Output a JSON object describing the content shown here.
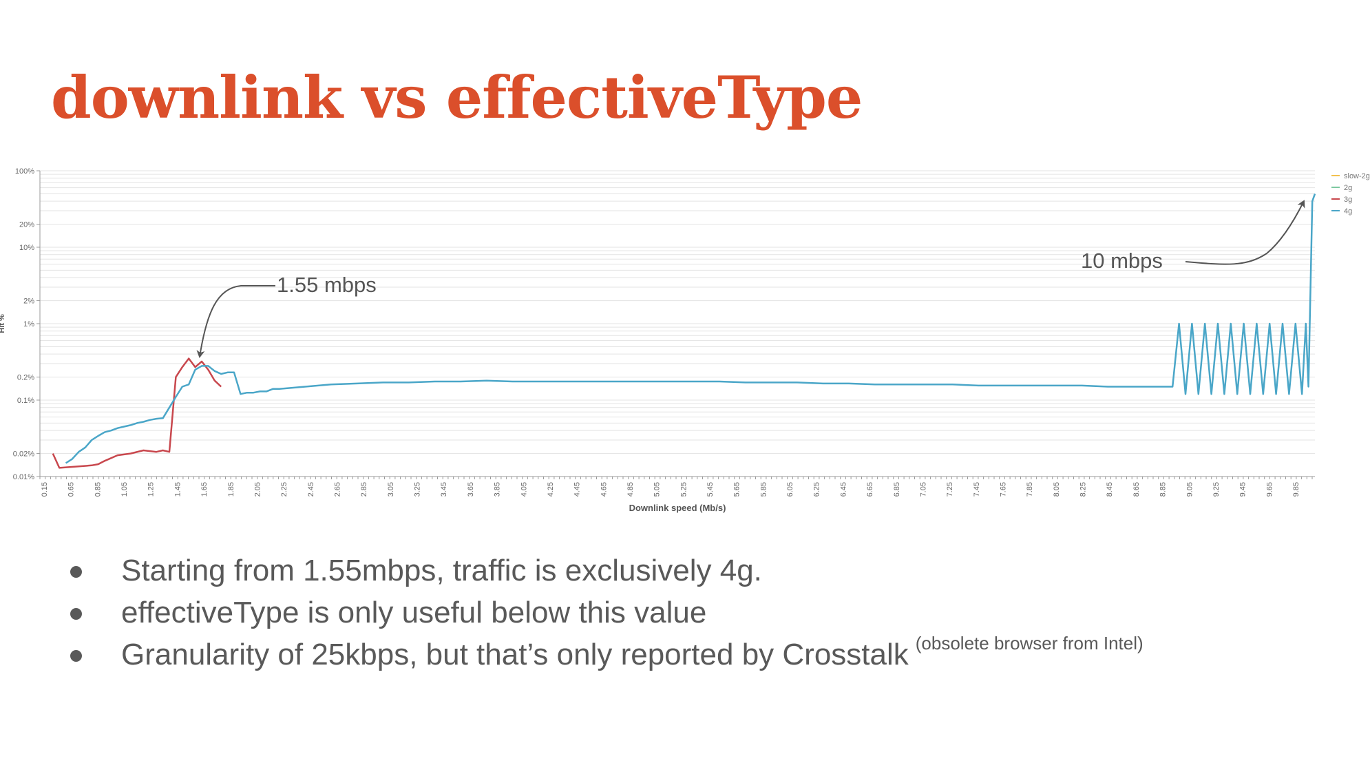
{
  "slide": {
    "title": "downlink vs effectiveType",
    "bullets": [
      {
        "text": "Starting from 1.55mbps, traffic is exclusively 4g.",
        "note": ""
      },
      {
        "text": "effectiveType is only useful below this value",
        "note": ""
      },
      {
        "text": "Granularity of 25kbps, but that’s only reported by Crosstalk",
        "note": "(obsolete browser from Intel)"
      }
    ]
  },
  "colors": {
    "title": "#db4f2b",
    "body_text": "#595959",
    "slow-2g": "#f2c14e",
    "2g": "#7dc9a0",
    "3g": "#c8474d",
    "4g": "#4aa6c8",
    "annotation": "#555555"
  },
  "chart_data": {
    "type": "line",
    "title": "",
    "xlabel": "Downlink speed (Mb/s)",
    "ylabel": "Hit %",
    "y_scale": "log",
    "ylim": [
      0.01,
      100
    ],
    "xlim": [
      0.15,
      10.0
    ],
    "ytick_labels": [
      {
        "value": 100,
        "label": "100%"
      },
      {
        "value": 20,
        "label": "20%"
      },
      {
        "value": 10,
        "label": "10%"
      },
      {
        "value": 2,
        "label": "2%"
      },
      {
        "value": 1,
        "label": "1%"
      },
      {
        "value": 0.2,
        "label": "0.2%"
      },
      {
        "value": 0.1,
        "label": "0.1%"
      },
      {
        "value": 0.02,
        "label": "0.02%"
      },
      {
        "value": 0.01,
        "label": "0.01%"
      }
    ],
    "xtick_labels": [
      "0.15",
      "0.65",
      "0.85",
      "1.05",
      "1.25",
      "1.45",
      "1.65",
      "1.85",
      "2.05",
      "2.25",
      "2.45",
      "2.65",
      "2.85",
      "3.05",
      "3.25",
      "3.45",
      "3.65",
      "3.85",
      "4.05",
      "4.25",
      "4.45",
      "4.65",
      "4.85",
      "5.05",
      "5.25",
      "5.45",
      "5.65",
      "5.85",
      "6.05",
      "6.25",
      "6.45",
      "6.65",
      "6.85",
      "7.05",
      "7.25",
      "7.45",
      "7.65",
      "7.85",
      "8.05",
      "8.25",
      "8.45",
      "8.65",
      "8.85",
      "9.05",
      "9.25",
      "9.45",
      "9.65",
      "9.85"
    ],
    "grid": true,
    "legend_position": "top-right",
    "series": [
      {
        "name": "slow-2g",
        "x": [],
        "y": []
      },
      {
        "name": "2g",
        "x": [],
        "y": []
      },
      {
        "name": "3g",
        "x": [
          0.25,
          0.3,
          0.55,
          0.6,
          0.65,
          0.75,
          0.85,
          0.95,
          1.05,
          1.1,
          1.15,
          1.2,
          1.25,
          1.3,
          1.35,
          1.4,
          1.45,
          1.5,
          1.55
        ],
        "y": [
          0.02,
          0.013,
          0.014,
          0.0145,
          0.016,
          0.019,
          0.02,
          0.022,
          0.021,
          0.022,
          0.021,
          0.2,
          0.27,
          0.35,
          0.27,
          0.32,
          0.25,
          0.18,
          0.15
        ]
      },
      {
        "name": "4g",
        "x": [
          0.35,
          0.4,
          0.45,
          0.5,
          0.55,
          0.6,
          0.65,
          0.7,
          0.75,
          0.8,
          0.85,
          0.9,
          0.95,
          1.0,
          1.05,
          1.1,
          1.15,
          1.2,
          1.25,
          1.3,
          1.35,
          1.4,
          1.45,
          1.5,
          1.55,
          1.6,
          1.65,
          1.7,
          1.75,
          1.8,
          1.85,
          1.9,
          1.95,
          2.0,
          2.2,
          2.4,
          2.6,
          2.8,
          3.0,
          3.2,
          3.4,
          3.6,
          3.8,
          4.0,
          4.2,
          4.4,
          4.6,
          4.8,
          5.0,
          5.2,
          5.4,
          5.6,
          5.8,
          6.0,
          6.2,
          6.4,
          6.6,
          6.8,
          7.0,
          7.2,
          7.4,
          7.6,
          7.8,
          8.0,
          8.2,
          8.4,
          8.6,
          8.8,
          8.9,
          8.95,
          9.0,
          9.05,
          9.1,
          9.15,
          9.2,
          9.25,
          9.3,
          9.35,
          9.4,
          9.45,
          9.5,
          9.55,
          9.6,
          9.65,
          9.7,
          9.75,
          9.8,
          9.85,
          9.9,
          9.93,
          9.95,
          9.98,
          10.0
        ],
        "y": [
          0.015,
          0.017,
          0.021,
          0.024,
          0.03,
          0.034,
          0.038,
          0.04,
          0.043,
          0.045,
          0.047,
          0.05,
          0.052,
          0.055,
          0.057,
          0.058,
          0.08,
          0.11,
          0.15,
          0.16,
          0.25,
          0.28,
          0.28,
          0.24,
          0.22,
          0.23,
          0.23,
          0.12,
          0.125,
          0.125,
          0.13,
          0.13,
          0.14,
          0.14,
          0.15,
          0.16,
          0.165,
          0.17,
          0.17,
          0.175,
          0.175,
          0.18,
          0.175,
          0.175,
          0.175,
          0.175,
          0.175,
          0.175,
          0.175,
          0.175,
          0.175,
          0.17,
          0.17,
          0.17,
          0.165,
          0.165,
          0.16,
          0.16,
          0.16,
          0.16,
          0.155,
          0.155,
          0.155,
          0.155,
          0.155,
          0.15,
          0.15,
          0.15,
          0.15,
          1.0,
          0.12,
          1.0,
          0.12,
          1.0,
          0.12,
          1.0,
          0.12,
          1.0,
          0.12,
          1.0,
          0.12,
          1.0,
          0.12,
          1.0,
          0.12,
          1.0,
          0.12,
          1.0,
          0.12,
          1.0,
          0.15,
          40,
          50
        ]
      }
    ],
    "annotations": [
      {
        "text": "1.55 mbps",
        "target_x": 1.55,
        "target_y": 0.3
      },
      {
        "text": "10 mbps",
        "target_x": 9.95,
        "target_y": 40
      }
    ]
  }
}
